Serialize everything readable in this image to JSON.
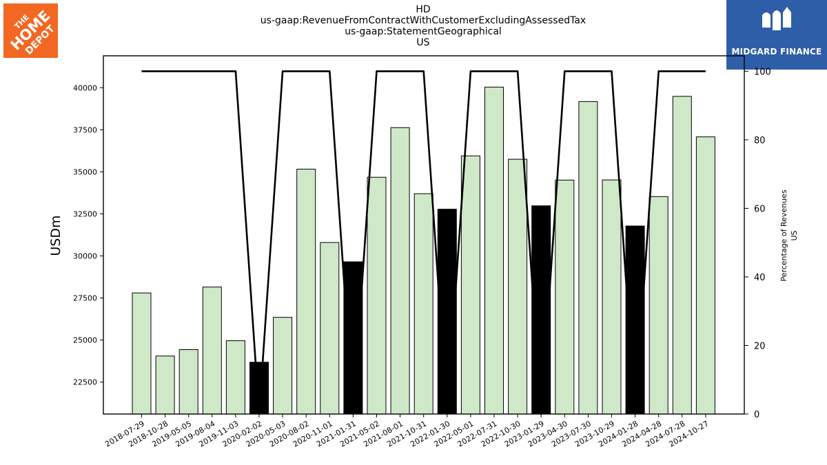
{
  "header": {
    "title_lines": [
      "HD",
      "us-gaap:RevenueFromContractWithCustomerExcludingAssessedTax",
      "us-gaap:StatementGeographical",
      "US"
    ]
  },
  "logos": {
    "left_text": "THE HOME DEPOT",
    "right_text": "MIDGARD FINANCE"
  },
  "colors": {
    "bar_fill": "#cfe8c8",
    "bar_highlight": "#000000",
    "line": "#000000",
    "home_depot_orange": "#f26722",
    "midgard_blue": "#2f5ea8"
  },
  "chart_data": {
    "type": "bar",
    "categories": [
      "2018-07-29",
      "2018-10-28",
      "2019-05-05",
      "2019-08-04",
      "2019-11-03",
      "2020-02-02",
      "2020-05-03",
      "2020-08-02",
      "2020-11-01",
      "2021-01-31",
      "2021-05-02",
      "2021-08-01",
      "2021-10-31",
      "2022-01-30",
      "2022-05-01",
      "2022-07-31",
      "2022-10-30",
      "2023-01-29",
      "2023-04-30",
      "2023-07-30",
      "2023-10-29",
      "2024-01-28",
      "2024-04-28",
      "2024-07-28",
      "2024-10-27"
    ],
    "series": [
      {
        "axis": "left",
        "values": [
          27800,
          24050,
          24430,
          28150,
          24960,
          23680,
          26350,
          35160,
          30800,
          29650,
          34680,
          37630,
          33700,
          32780,
          35950,
          40040,
          35750,
          32980,
          34510,
          39180,
          34520,
          31780,
          33530,
          39490,
          37080
        ],
        "highlight": [
          false,
          false,
          false,
          false,
          false,
          true,
          false,
          false,
          false,
          true,
          false,
          false,
          false,
          true,
          false,
          false,
          false,
          true,
          false,
          false,
          false,
          true,
          false,
          false,
          false
        ]
      },
      {
        "axis": "right",
        "type": "line",
        "values": [
          100,
          100,
          100,
          100,
          100,
          0,
          100,
          100,
          100,
          0,
          100,
          100,
          100,
          0,
          100,
          100,
          100,
          0,
          100,
          100,
          100,
          0,
          100,
          100,
          100
        ]
      }
    ],
    "ylabel": "USDm",
    "y2label_lines": [
      "Percentage of Revenues",
      "US"
    ],
    "ylim": [
      20600,
      41900
    ],
    "y2lim": [
      0,
      104.5
    ],
    "yticks": [
      22500,
      25000,
      27500,
      30000,
      32500,
      35000,
      37500,
      40000
    ],
    "y2ticks": [
      0,
      20,
      40,
      60,
      80,
      100
    ],
    "grid": false,
    "legend": "none"
  }
}
